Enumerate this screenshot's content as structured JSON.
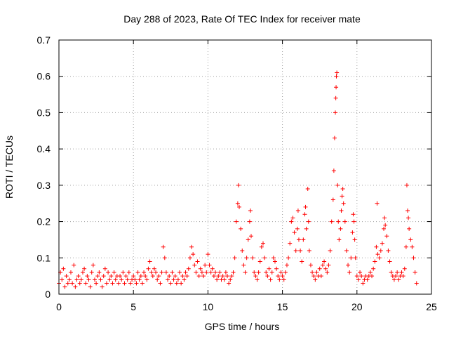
{
  "chart_data": {
    "type": "scatter",
    "title": "Day 288 of 2023, Rate Of TEC Index for receiver mate",
    "xlabel": "GPS time / hours",
    "ylabel": "ROTI / TECUs",
    "xlim": [
      0,
      25
    ],
    "ylim": [
      0,
      0.7
    ],
    "x_ticks": [
      0,
      5,
      10,
      15,
      20,
      25
    ],
    "x_tick_labels": [
      "0",
      "5",
      "10",
      "15",
      "20",
      "25"
    ],
    "y_ticks": [
      0,
      0.1,
      0.2,
      0.3,
      0.4,
      0.5,
      0.6,
      0.7
    ],
    "y_tick_labels": [
      "0",
      "0.1",
      "0.2",
      "0.3",
      "0.4",
      "0.5",
      "0.6",
      "0.7"
    ],
    "grid": true,
    "marker": "+",
    "color": "#ff0000",
    "series": [
      {
        "name": "ROTI",
        "points": [
          [
            0.0,
            0.03
          ],
          [
            0.1,
            0.06
          ],
          [
            0.2,
            0.04
          ],
          [
            0.3,
            0.07
          ],
          [
            0.4,
            0.02
          ],
          [
            0.5,
            0.05
          ],
          [
            0.6,
            0.03
          ],
          [
            0.7,
            0.04
          ],
          [
            0.8,
            0.06
          ],
          [
            0.9,
            0.03
          ],
          [
            1.0,
            0.08
          ],
          [
            1.1,
            0.02
          ],
          [
            1.2,
            0.04
          ],
          [
            1.3,
            0.05
          ],
          [
            1.4,
            0.03
          ],
          [
            1.5,
            0.04
          ],
          [
            1.6,
            0.06
          ],
          [
            1.7,
            0.07
          ],
          [
            1.8,
            0.03
          ],
          [
            1.9,
            0.05
          ],
          [
            2.0,
            0.04
          ],
          [
            2.1,
            0.02
          ],
          [
            2.2,
            0.06
          ],
          [
            2.3,
            0.08
          ],
          [
            2.4,
            0.04
          ],
          [
            2.5,
            0.03
          ],
          [
            2.6,
            0.05
          ],
          [
            2.7,
            0.06
          ],
          [
            2.8,
            0.04
          ],
          [
            2.9,
            0.02
          ],
          [
            3.0,
            0.05
          ],
          [
            3.1,
            0.07
          ],
          [
            3.2,
            0.03
          ],
          [
            3.3,
            0.06
          ],
          [
            3.4,
            0.04
          ],
          [
            3.5,
            0.05
          ],
          [
            3.6,
            0.03
          ],
          [
            3.7,
            0.06
          ],
          [
            3.8,
            0.04
          ],
          [
            3.9,
            0.05
          ],
          [
            4.0,
            0.03
          ],
          [
            4.1,
            0.05
          ],
          [
            4.2,
            0.04
          ],
          [
            4.3,
            0.06
          ],
          [
            4.4,
            0.03
          ],
          [
            4.5,
            0.05
          ],
          [
            4.6,
            0.04
          ],
          [
            4.7,
            0.06
          ],
          [
            4.8,
            0.03
          ],
          [
            4.9,
            0.04
          ],
          [
            5.0,
            0.05
          ],
          [
            5.1,
            0.04
          ],
          [
            5.2,
            0.03
          ],
          [
            5.3,
            0.06
          ],
          [
            5.4,
            0.04
          ],
          [
            5.5,
            0.05
          ],
          [
            5.6,
            0.03
          ],
          [
            5.7,
            0.06
          ],
          [
            5.8,
            0.05
          ],
          [
            5.9,
            0.04
          ],
          [
            6.0,
            0.07
          ],
          [
            6.1,
            0.09
          ],
          [
            6.2,
            0.06
          ],
          [
            6.3,
            0.05
          ],
          [
            6.4,
            0.07
          ],
          [
            6.5,
            0.06
          ],
          [
            6.6,
            0.04
          ],
          [
            6.7,
            0.05
          ],
          [
            6.8,
            0.03
          ],
          [
            6.9,
            0.06
          ],
          [
            7.0,
            0.13
          ],
          [
            7.1,
            0.1
          ],
          [
            7.2,
            0.06
          ],
          [
            7.3,
            0.04
          ],
          [
            7.4,
            0.05
          ],
          [
            7.5,
            0.03
          ],
          [
            7.6,
            0.06
          ],
          [
            7.7,
            0.04
          ],
          [
            7.8,
            0.05
          ],
          [
            7.9,
            0.03
          ],
          [
            8.0,
            0.04
          ],
          [
            8.1,
            0.06
          ],
          [
            8.2,
            0.03
          ],
          [
            8.3,
            0.05
          ],
          [
            8.4,
            0.04
          ],
          [
            8.5,
            0.06
          ],
          [
            8.6,
            0.05
          ],
          [
            8.7,
            0.07
          ],
          [
            8.8,
            0.1
          ],
          [
            8.9,
            0.13
          ],
          [
            9.0,
            0.11
          ],
          [
            9.1,
            0.08
          ],
          [
            9.2,
            0.06
          ],
          [
            9.3,
            0.09
          ],
          [
            9.4,
            0.05
          ],
          [
            9.5,
            0.07
          ],
          [
            9.6,
            0.06
          ],
          [
            9.7,
            0.05
          ],
          [
            9.8,
            0.08
          ],
          [
            9.9,
            0.06
          ],
          [
            10.0,
            0.11
          ],
          [
            10.1,
            0.08
          ],
          [
            10.2,
            0.06
          ],
          [
            10.3,
            0.07
          ],
          [
            10.4,
            0.05
          ],
          [
            10.5,
            0.06
          ],
          [
            10.6,
            0.04
          ],
          [
            10.7,
            0.05
          ],
          [
            10.8,
            0.06
          ],
          [
            10.9,
            0.04
          ],
          [
            11.0,
            0.05
          ],
          [
            11.1,
            0.04
          ],
          [
            11.2,
            0.06
          ],
          [
            11.3,
            0.05
          ],
          [
            11.4,
            0.03
          ],
          [
            11.5,
            0.04
          ],
          [
            11.6,
            0.05
          ],
          [
            11.7,
            0.06
          ],
          [
            11.8,
            0.1
          ],
          [
            11.9,
            0.2
          ],
          [
            12.0,
            0.25
          ],
          [
            12.05,
            0.3
          ],
          [
            12.1,
            0.24
          ],
          [
            12.2,
            0.18
          ],
          [
            12.3,
            0.12
          ],
          [
            12.4,
            0.08
          ],
          [
            12.5,
            0.06
          ],
          [
            12.6,
            0.1
          ],
          [
            12.7,
            0.15
          ],
          [
            12.8,
            0.2
          ],
          [
            12.85,
            0.23
          ],
          [
            12.9,
            0.16
          ],
          [
            13.0,
            0.1
          ],
          [
            13.1,
            0.06
          ],
          [
            13.2,
            0.05
          ],
          [
            13.3,
            0.04
          ],
          [
            13.4,
            0.06
          ],
          [
            13.5,
            0.09
          ],
          [
            13.6,
            0.13
          ],
          [
            13.7,
            0.14
          ],
          [
            13.8,
            0.1
          ],
          [
            13.9,
            0.06
          ],
          [
            14.0,
            0.05
          ],
          [
            14.1,
            0.07
          ],
          [
            14.2,
            0.04
          ],
          [
            14.3,
            0.06
          ],
          [
            14.4,
            0.1
          ],
          [
            14.5,
            0.09
          ],
          [
            14.6,
            0.07
          ],
          [
            14.7,
            0.05
          ],
          [
            14.8,
            0.04
          ],
          [
            14.9,
            0.06
          ],
          [
            15.0,
            0.05
          ],
          [
            15.1,
            0.04
          ],
          [
            15.2,
            0.06
          ],
          [
            15.3,
            0.08
          ],
          [
            15.4,
            0.1
          ],
          [
            15.5,
            0.14
          ],
          [
            15.6,
            0.2
          ],
          [
            15.7,
            0.21
          ],
          [
            15.8,
            0.17
          ],
          [
            15.9,
            0.12
          ],
          [
            16.0,
            0.18
          ],
          [
            16.05,
            0.23
          ],
          [
            16.1,
            0.15
          ],
          [
            16.2,
            0.12
          ],
          [
            16.3,
            0.09
          ],
          [
            16.4,
            0.15
          ],
          [
            16.5,
            0.22
          ],
          [
            16.55,
            0.24
          ],
          [
            16.6,
            0.18
          ],
          [
            16.7,
            0.29
          ],
          [
            16.75,
            0.2
          ],
          [
            16.8,
            0.12
          ],
          [
            16.9,
            0.08
          ],
          [
            17.0,
            0.06
          ],
          [
            17.1,
            0.05
          ],
          [
            17.2,
            0.04
          ],
          [
            17.3,
            0.06
          ],
          [
            17.4,
            0.05
          ],
          [
            17.5,
            0.07
          ],
          [
            17.6,
            0.05
          ],
          [
            17.7,
            0.08
          ],
          [
            17.8,
            0.09
          ],
          [
            17.9,
            0.07
          ],
          [
            18.0,
            0.06
          ],
          [
            18.1,
            0.08
          ],
          [
            18.2,
            0.12
          ],
          [
            18.3,
            0.2
          ],
          [
            18.4,
            0.26
          ],
          [
            18.45,
            0.34
          ],
          [
            18.5,
            0.43
          ],
          [
            18.55,
            0.5
          ],
          [
            18.58,
            0.54
          ],
          [
            18.6,
            0.57
          ],
          [
            18.62,
            0.6
          ],
          [
            18.65,
            0.61
          ],
          [
            18.7,
            0.3
          ],
          [
            18.75,
            0.2
          ],
          [
            18.8,
            0.15
          ],
          [
            18.9,
            0.18
          ],
          [
            18.95,
            0.23
          ],
          [
            19.0,
            0.27
          ],
          [
            19.05,
            0.29
          ],
          [
            19.1,
            0.25
          ],
          [
            19.2,
            0.2
          ],
          [
            19.3,
            0.12
          ],
          [
            19.4,
            0.08
          ],
          [
            19.5,
            0.06
          ],
          [
            19.6,
            0.1
          ],
          [
            19.7,
            0.17
          ],
          [
            19.75,
            0.22
          ],
          [
            19.8,
            0.2
          ],
          [
            19.85,
            0.15
          ],
          [
            19.9,
            0.1
          ],
          [
            20.0,
            0.05
          ],
          [
            20.1,
            0.04
          ],
          [
            20.2,
            0.06
          ],
          [
            20.3,
            0.05
          ],
          [
            20.4,
            0.03
          ],
          [
            20.5,
            0.04
          ],
          [
            20.6,
            0.05
          ],
          [
            20.7,
            0.04
          ],
          [
            20.8,
            0.05
          ],
          [
            20.9,
            0.06
          ],
          [
            21.0,
            0.05
          ],
          [
            21.1,
            0.07
          ],
          [
            21.2,
            0.09
          ],
          [
            21.3,
            0.13
          ],
          [
            21.35,
            0.25
          ],
          [
            21.4,
            0.11
          ],
          [
            21.5,
            0.1
          ],
          [
            21.6,
            0.12
          ],
          [
            21.7,
            0.14
          ],
          [
            21.8,
            0.18
          ],
          [
            21.85,
            0.21
          ],
          [
            21.9,
            0.19
          ],
          [
            22.0,
            0.16
          ],
          [
            22.1,
            0.12
          ],
          [
            22.2,
            0.09
          ],
          [
            22.3,
            0.06
          ],
          [
            22.4,
            0.05
          ],
          [
            22.5,
            0.04
          ],
          [
            22.6,
            0.05
          ],
          [
            22.7,
            0.06
          ],
          [
            22.8,
            0.04
          ],
          [
            22.9,
            0.05
          ],
          [
            23.0,
            0.06
          ],
          [
            23.1,
            0.05
          ],
          [
            23.2,
            0.07
          ],
          [
            23.3,
            0.13
          ],
          [
            23.35,
            0.3
          ],
          [
            23.4,
            0.23
          ],
          [
            23.45,
            0.21
          ],
          [
            23.5,
            0.18
          ],
          [
            23.6,
            0.15
          ],
          [
            23.7,
            0.13
          ],
          [
            23.8,
            0.1
          ],
          [
            23.9,
            0.06
          ],
          [
            24.0,
            0.03
          ]
        ]
      }
    ]
  }
}
